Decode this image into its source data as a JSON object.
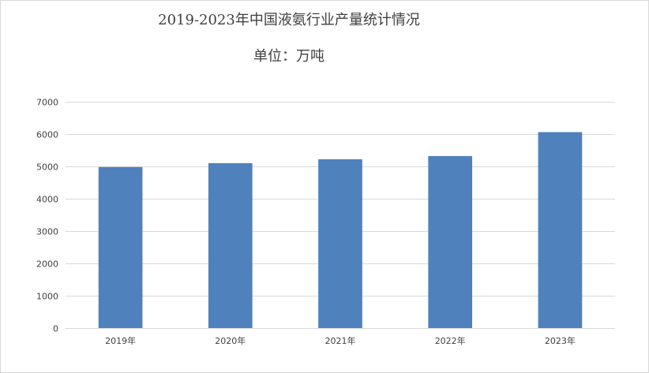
{
  "chart_data": {
    "type": "bar",
    "title": "2019-2023年中国液氨行业产量统计情况",
    "subtitle": "单位：万吨",
    "categories": [
      "2019年",
      "2020年",
      "2021年",
      "2022年",
      "2023年"
    ],
    "values": [
      4980,
      5100,
      5220,
      5320,
      6060
    ],
    "yticks": [
      "0",
      "1000",
      "2000",
      "3000",
      "4000",
      "5000",
      "6000",
      "7000"
    ],
    "ylim": [
      0,
      7000
    ],
    "grid": true,
    "legend": "none",
    "bar_color": "#4f81bd",
    "grid_color": "#d9d9d9",
    "xlabel": "",
    "ylabel": ""
  }
}
